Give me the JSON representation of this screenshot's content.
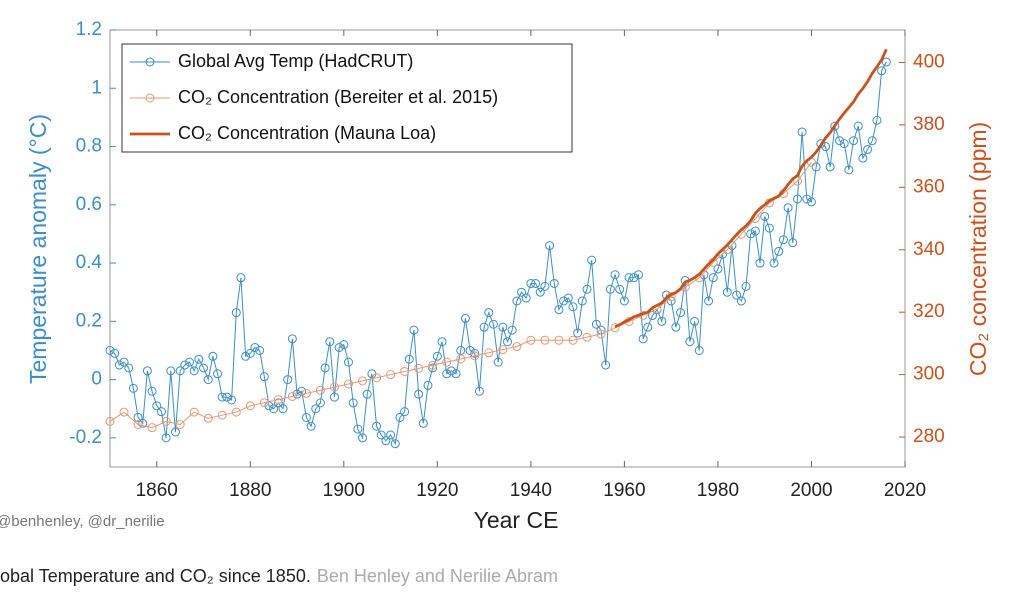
{
  "chart_data": {
    "type": "line",
    "xlabel": "Year CE",
    "ylabel": "Temperature anomaly (°C)",
    "y2label": "CO₂ concentration (ppm)",
    "xlim": [
      1850,
      2020
    ],
    "xticks": [
      1860,
      1880,
      1900,
      1920,
      1940,
      1960,
      1980,
      2000,
      2020
    ],
    "ylim": [
      -0.3,
      1.2
    ],
    "yticks": [
      -0.2,
      0,
      0.2,
      0.4,
      0.6,
      0.8,
      1,
      1.2
    ],
    "y2lim": [
      270.4,
      410.4
    ],
    "y2ticks": [
      280,
      300,
      320,
      340,
      360,
      380,
      400
    ],
    "legend": "upper left",
    "watermark": "@benhenley, @dr_nerilie",
    "caption": "obal Temperature and CO₂ since 1850.",
    "credit": "Ben Henley and Nerilie Abram",
    "series": [
      {
        "name": "Global Avg Temp (HadCRUT)",
        "color": "#3d8ec4",
        "marker": "circle",
        "x": [
          1850,
          1851,
          1852,
          1853,
          1854,
          1855,
          1856,
          1857,
          1858,
          1859,
          1860,
          1861,
          1862,
          1863,
          1864,
          1865,
          1866,
          1867,
          1868,
          1869,
          1870,
          1871,
          1872,
          1873,
          1874,
          1875,
          1876,
          1877,
          1878,
          1879,
          1880,
          1881,
          1882,
          1883,
          1884,
          1885,
          1886,
          1887,
          1888,
          1889,
          1890,
          1891,
          1892,
          1893,
          1894,
          1895,
          1896,
          1897,
          1898,
          1899,
          1900,
          1901,
          1902,
          1903,
          1904,
          1905,
          1906,
          1907,
          1908,
          1909,
          1910,
          1911,
          1912,
          1913,
          1914,
          1915,
          1916,
          1917,
          1918,
          1919,
          1920,
          1921,
          1922,
          1923,
          1924,
          1925,
          1926,
          1927,
          1928,
          1929,
          1930,
          1931,
          1932,
          1933,
          1934,
          1935,
          1936,
          1937,
          1938,
          1939,
          1940,
          1941,
          1942,
          1943,
          1944,
          1945,
          1946,
          1947,
          1948,
          1949,
          1950,
          1951,
          1952,
          1953,
          1954,
          1955,
          1956,
          1957,
          1958,
          1959,
          1960,
          1961,
          1962,
          1963,
          1964,
          1965,
          1966,
          1967,
          1968,
          1969,
          1970,
          1971,
          1972,
          1973,
          1974,
          1975,
          1976,
          1977,
          1978,
          1979,
          1980,
          1981,
          1982,
          1983,
          1984,
          1985,
          1986,
          1987,
          1988,
          1989,
          1990,
          1991,
          1992,
          1993,
          1994,
          1995,
          1996,
          1997,
          1998,
          1999,
          2000,
          2001,
          2002,
          2003,
          2004,
          2005,
          2006,
          2007,
          2008,
          2009,
          2010,
          2011,
          2012,
          2013,
          2014,
          2015,
          2016
        ],
        "values": [
          0.1,
          0.09,
          0.05,
          0.06,
          0.04,
          -0.03,
          -0.13,
          -0.15,
          0.03,
          -0.04,
          -0.09,
          -0.11,
          -0.2,
          0.03,
          -0.18,
          0.03,
          0.05,
          0.06,
          0.03,
          0.07,
          0.04,
          0.0,
          0.08,
          0.02,
          -0.06,
          -0.06,
          -0.07,
          0.23,
          0.35,
          0.08,
          0.09,
          0.11,
          0.1,
          0.01,
          -0.09,
          -0.1,
          -0.08,
          -0.1,
          0.0,
          0.14,
          -0.05,
          -0.04,
          -0.13,
          -0.16,
          -0.1,
          -0.08,
          0.04,
          0.13,
          -0.06,
          0.11,
          0.12,
          0.06,
          -0.08,
          -0.17,
          -0.2,
          -0.05,
          0.02,
          -0.16,
          -0.19,
          -0.21,
          -0.19,
          -0.22,
          -0.13,
          -0.11,
          0.07,
          0.17,
          -0.05,
          -0.15,
          -0.02,
          0.04,
          0.08,
          0.13,
          0.02,
          0.03,
          0.02,
          0.1,
          0.21,
          0.1,
          0.09,
          -0.04,
          0.18,
          0.23,
          0.19,
          0.06,
          0.18,
          0.13,
          0.17,
          0.27,
          0.3,
          0.28,
          0.33,
          0.33,
          0.3,
          0.32,
          0.46,
          0.33,
          0.24,
          0.27,
          0.28,
          0.25,
          0.16,
          0.27,
          0.31,
          0.41,
          0.19,
          0.17,
          0.05,
          0.31,
          0.36,
          0.31,
          0.27,
          0.35,
          0.35,
          0.36,
          0.14,
          0.18,
          0.22,
          0.24,
          0.2,
          0.29,
          0.27,
          0.18,
          0.23,
          0.34,
          0.13,
          0.2,
          0.1,
          0.36,
          0.27,
          0.35,
          0.38,
          0.43,
          0.3,
          0.46,
          0.29,
          0.27,
          0.32,
          0.5,
          0.51,
          0.4,
          0.56,
          0.52,
          0.4,
          0.44,
          0.48,
          0.59,
          0.47,
          0.62,
          0.85,
          0.62,
          0.61,
          0.73,
          0.81,
          0.8,
          0.73,
          0.87,
          0.82,
          0.81,
          0.72,
          0.82,
          0.87,
          0.76,
          0.79,
          0.82,
          0.89,
          1.06,
          1.09
        ]
      },
      {
        "name": "CO₂ Concentration (Bereiter et al. 2015)",
        "color": "#e39a78",
        "marker": "circle",
        "axis": "y2",
        "x": [
          1850,
          1853,
          1856,
          1859,
          1862,
          1865,
          1868,
          1871,
          1874,
          1877,
          1880,
          1883,
          1886,
          1889,
          1892,
          1895,
          1898,
          1901,
          1904,
          1907,
          1910,
          1913,
          1916,
          1919,
          1922,
          1925,
          1928,
          1931,
          1934,
          1937,
          1940,
          1943,
          1946,
          1949,
          1952,
          1955,
          1958,
          1961,
          1964,
          1967,
          1970,
          1973,
          1976,
          1979,
          1982,
          1985,
          1988,
          1991,
          1994,
          1997,
          2000
        ],
        "values": [
          285,
          288,
          284,
          283,
          285,
          284,
          288,
          286,
          287,
          288,
          290,
          291,
          292,
          293,
          294,
          295,
          296,
          297,
          298,
          299,
          300,
          301,
          302,
          303,
          304,
          305,
          306,
          307,
          308,
          309,
          311,
          311,
          311,
          311,
          312,
          313,
          315,
          317,
          319,
          321,
          325,
          328,
          331,
          336,
          340,
          345,
          350,
          355,
          358,
          362,
          368
        ]
      },
      {
        "name": "CO₂ Concentration (Mauna Loa)",
        "color": "#c7521e",
        "marker": "none",
        "axis": "y2",
        "x": [
          1958,
          1959,
          1960,
          1961,
          1962,
          1963,
          1964,
          1965,
          1966,
          1967,
          1968,
          1969,
          1970,
          1971,
          1972,
          1973,
          1974,
          1975,
          1976,
          1977,
          1978,
          1979,
          1980,
          1981,
          1982,
          1983,
          1984,
          1985,
          1986,
          1987,
          1988,
          1989,
          1990,
          1991,
          1992,
          1993,
          1994,
          1995,
          1996,
          1997,
          1998,
          1999,
          2000,
          2001,
          2002,
          2003,
          2004,
          2005,
          2006,
          2007,
          2008,
          2009,
          2010,
          2011,
          2012,
          2013,
          2014,
          2015,
          2016
        ],
        "values": [
          315.3,
          316.0,
          316.9,
          317.6,
          318.5,
          319.0,
          319.6,
          320.0,
          321.4,
          322.2,
          323.0,
          324.6,
          325.7,
          326.3,
          327.5,
          329.7,
          330.2,
          331.1,
          332.1,
          333.8,
          335.4,
          336.8,
          338.7,
          340.1,
          341.5,
          343.2,
          344.9,
          346.4,
          347.6,
          349.3,
          351.7,
          353.2,
          354.4,
          355.7,
          356.5,
          357.2,
          358.9,
          360.9,
          362.7,
          363.8,
          366.8,
          368.5,
          369.7,
          371.3,
          373.5,
          375.8,
          377.5,
          379.8,
          381.9,
          383.8,
          385.6,
          387.4,
          389.9,
          391.7,
          393.9,
          396.5,
          398.6,
          400.8,
          404.2
        ]
      }
    ]
  }
}
